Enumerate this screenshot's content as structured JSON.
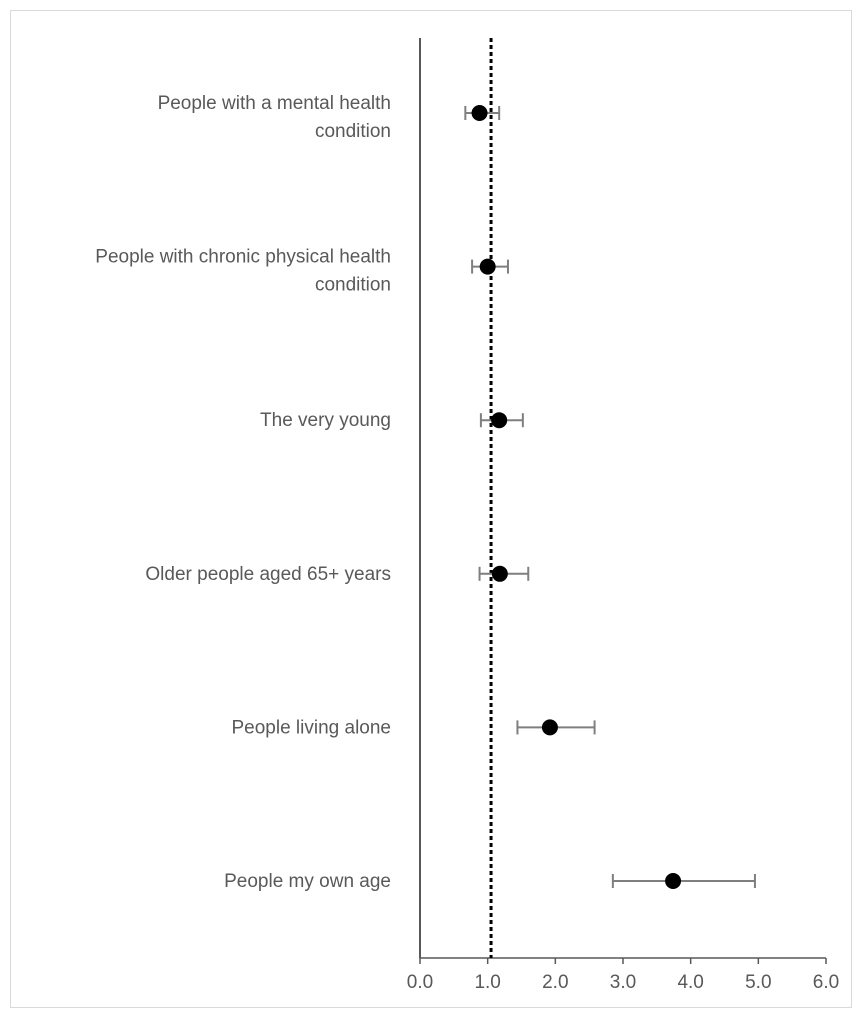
{
  "chart_data": {
    "type": "scatter",
    "subtype": "forest-plot",
    "title": "",
    "xlabel": "",
    "ylabel": "",
    "xlim": [
      0,
      6
    ],
    "x_ticks": [
      "0.0",
      "1.0",
      "2.0",
      "3.0",
      "4.0",
      "5.0",
      "6.0"
    ],
    "reference_line": {
      "x": 1.05,
      "style": "dotted"
    },
    "grid": false,
    "categories": [
      {
        "label_lines": [
          "People with a mental health",
          "condition"
        ],
        "value": 0.88,
        "lower": 0.67,
        "upper": 1.17
      },
      {
        "label_lines": [
          "People with chronic physical health",
          "condition"
        ],
        "value": 1.0,
        "lower": 0.77,
        "upper": 1.3
      },
      {
        "label_lines": [
          "The very young"
        ],
        "value": 1.17,
        "lower": 0.9,
        "upper": 1.52
      },
      {
        "label_lines": [
          "Older people aged 65+ years"
        ],
        "value": 1.18,
        "lower": 0.88,
        "upper": 1.6
      },
      {
        "label_lines": [
          "People living alone"
        ],
        "value": 1.92,
        "lower": 1.44,
        "upper": 2.58
      },
      {
        "label_lines": [
          "People my own age"
        ],
        "value": 3.74,
        "lower": 2.85,
        "upper": 4.95
      }
    ],
    "colors": {
      "marker": "#000000",
      "error_bar": "#7f7f7f",
      "axis": "#595959",
      "label": "#595959"
    }
  }
}
